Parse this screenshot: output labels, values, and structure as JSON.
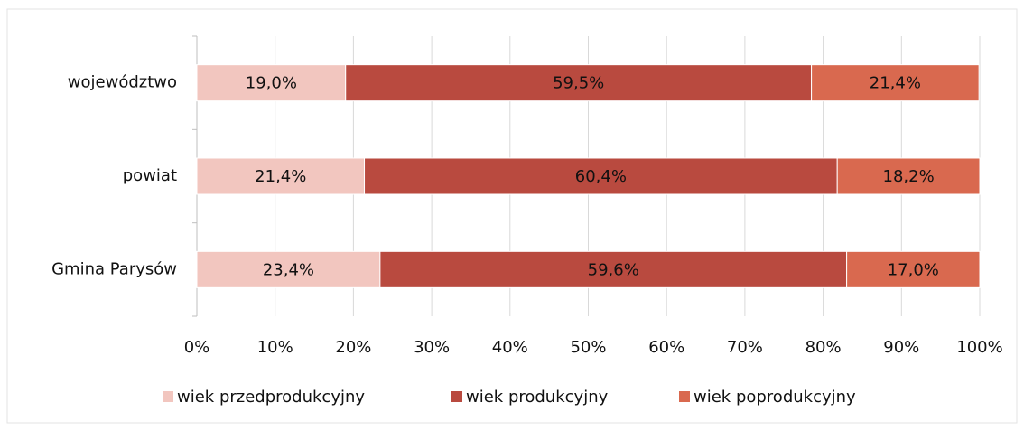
{
  "chart_data": {
    "type": "stacked-bar-horizontal",
    "categories": [
      "województwo",
      "powiat",
      "Gmina Parysów"
    ],
    "series": [
      {
        "name": "wiek przedprodukcyjny",
        "color": "#f2c6bf",
        "values": [
          19.0,
          21.4,
          23.4
        ],
        "value_labels": [
          "19,0%",
          "21,4%",
          "23,4%"
        ]
      },
      {
        "name": "wiek produkcyjny",
        "color": "#b94a3f",
        "values": [
          59.5,
          60.4,
          59.6
        ],
        "value_labels": [
          "59,5%",
          "60,4%",
          "59,6%"
        ]
      },
      {
        "name": "wiek poprodukcyjny",
        "color": "#d9694f",
        "values": [
          21.4,
          18.2,
          17.0
        ],
        "value_labels": [
          "21,4%",
          "18,2%",
          "17,0%"
        ]
      }
    ],
    "xlim": [
      0,
      100
    ],
    "xticks": [
      {
        "value": 0,
        "label": "0%"
      },
      {
        "value": 10,
        "label": "10%"
      },
      {
        "value": 20,
        "label": "20%"
      },
      {
        "value": 30,
        "label": "30%"
      },
      {
        "value": 40,
        "label": "40%"
      },
      {
        "value": 50,
        "label": "50%"
      },
      {
        "value": 60,
        "label": "60%"
      },
      {
        "value": 70,
        "label": "70%"
      },
      {
        "value": 80,
        "label": "80%"
      },
      {
        "value": 90,
        "label": "90%"
      },
      {
        "value": 100,
        "label": "100%"
      }
    ],
    "grid": true,
    "legend": "bottom"
  }
}
